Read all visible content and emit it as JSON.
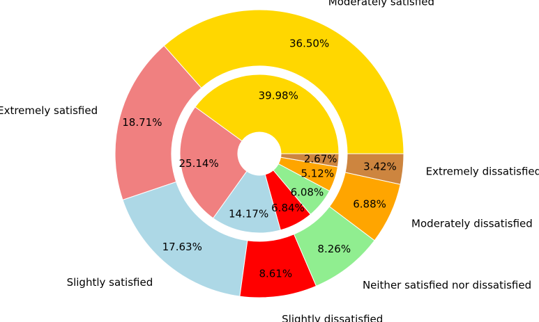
{
  "chart_data": {
    "type": "pie",
    "variant": "nested-donut",
    "start_angle_deg": 0,
    "direction": "counterclockwise",
    "colors": {
      "Moderately satisfied": "#FFD700",
      "Extremely satisfied": "#F08080",
      "Slightly satisfied": "#ADD8E6",
      "Slightly dissatisfied": "#FF0000",
      "Neither satisfied nor dissatisfied": "#90EE90",
      "Moderately dissatisfied": "#FFA500",
      "Extremely dissatisfied": "#CD853F"
    },
    "outer_ring": {
      "labels": [
        "Moderately satisfied",
        "Extremely satisfied",
        "Slightly satisfied",
        "Slightly dissatisfied",
        "Neither satisfied nor dissatisfied",
        "Moderately dissatisfied",
        "Extremely dissatisfied"
      ],
      "values": [
        36.5,
        18.71,
        17.63,
        8.61,
        8.26,
        6.88,
        3.42
      ],
      "value_labels": [
        "36.50%",
        "18.71%",
        "17.63%",
        "8.61%",
        "8.26%",
        "6.88%",
        "3.42%"
      ]
    },
    "inner_ring": {
      "labels": [
        "Moderately satisfied",
        "Extremely satisfied",
        "Slightly satisfied",
        "Slightly dissatisfied",
        "Neither satisfied nor dissatisfied",
        "Moderately dissatisfied",
        "Extremely dissatisfied"
      ],
      "values": [
        39.98,
        25.14,
        14.17,
        6.84,
        6.08,
        5.12,
        2.67
      ],
      "value_labels": [
        "39.98%",
        "25.14%",
        "14.17%",
        "6.84%",
        "6.08%",
        "5.12%",
        "2.67%"
      ]
    }
  }
}
